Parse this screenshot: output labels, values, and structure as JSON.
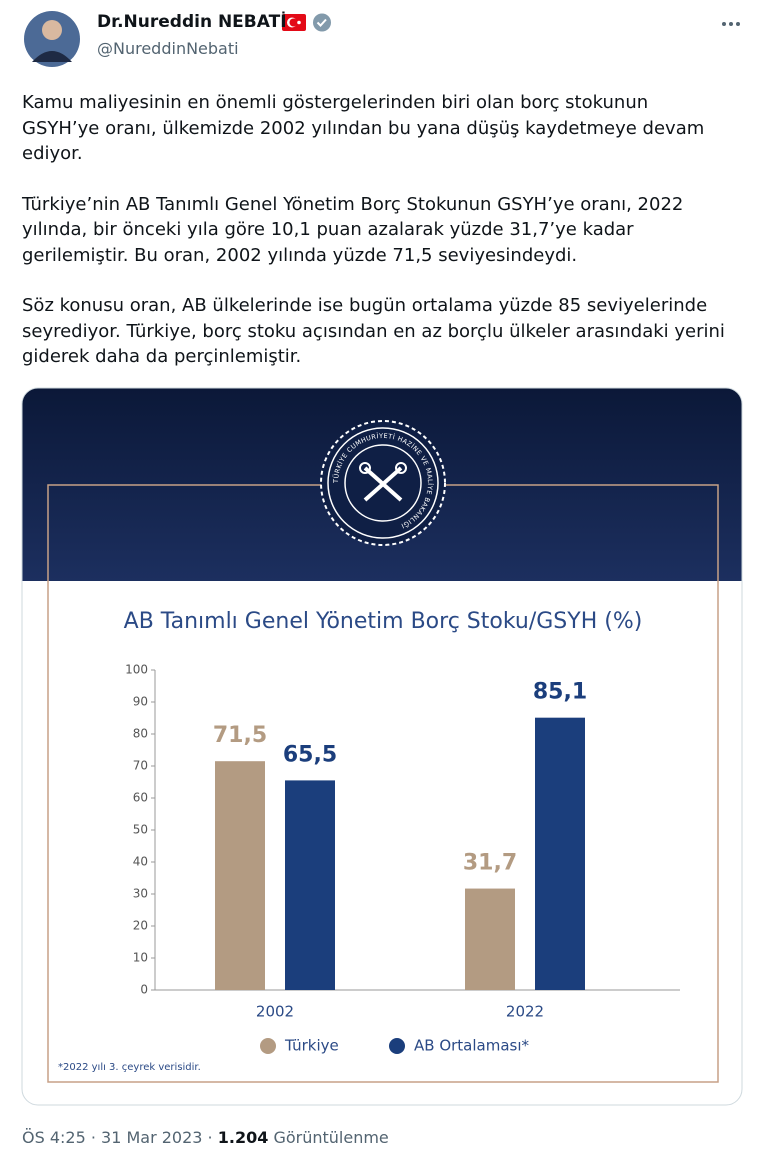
{
  "tweet": {
    "author_name": "Dr.Nureddin NEBATİ",
    "handle": "@NureddinNebati",
    "paragraphs": [
      "Kamu maliyesinin en önemli göstergelerinden biri olan borç stokunun GSYH’ye oranı, ülkemizde 2002 yılından bu yana düşüş kaydetmeye devam ediyor.",
      "Türkiye’nin AB Tanımlı Genel Yönetim Borç Stokunun GSYH’ye oranı, 2022 yılında, bir önceki yıla göre 10,1 puan azalarak yüzde 31,7’ye kadar gerilemiştir. Bu oran, 2002 yılında yüzde 71,5 seviyesindeydi.",
      "Söz konusu oran, AB ülkelerinde ise bugün ortalama yüzde 85 seviyelerinde seyrediyor. Türkiye, borç stoku açısından en az borçlu ülkeler arasındaki yerini giderek daha da perçinlemiştir."
    ],
    "logo_text": "TÜRKİYE CUMHURİYETİ HAZİNE VE MALİYE BAKANLIĞI",
    "timestamp": "ÖS 4:25 · 31 Mar 2023 ·",
    "views": "1.204",
    "views_label": "Görüntülenme"
  },
  "chart_data": {
    "type": "bar",
    "title": "AB Tanımlı  Genel Yönetim Borç Stoku/GSYH (%)",
    "categories": [
      "2002",
      "2022"
    ],
    "series": [
      {
        "name": "Türkiye",
        "color": "#b39b82",
        "values": [
          71.5,
          31.7
        ],
        "value_labels": [
          "71,5",
          "31,7"
        ]
      },
      {
        "name": "AB Ortalaması*",
        "color": "#1b3e7c",
        "values": [
          65.5,
          85.1
        ],
        "value_labels": [
          "65,5",
          "85,1"
        ]
      }
    ],
    "ylim": [
      0,
      100
    ],
    "yticks": [
      0,
      10,
      20,
      30,
      40,
      50,
      60,
      70,
      80,
      90,
      100
    ],
    "footnote": "*2022 yılı 3. çeyrek verisidir."
  }
}
